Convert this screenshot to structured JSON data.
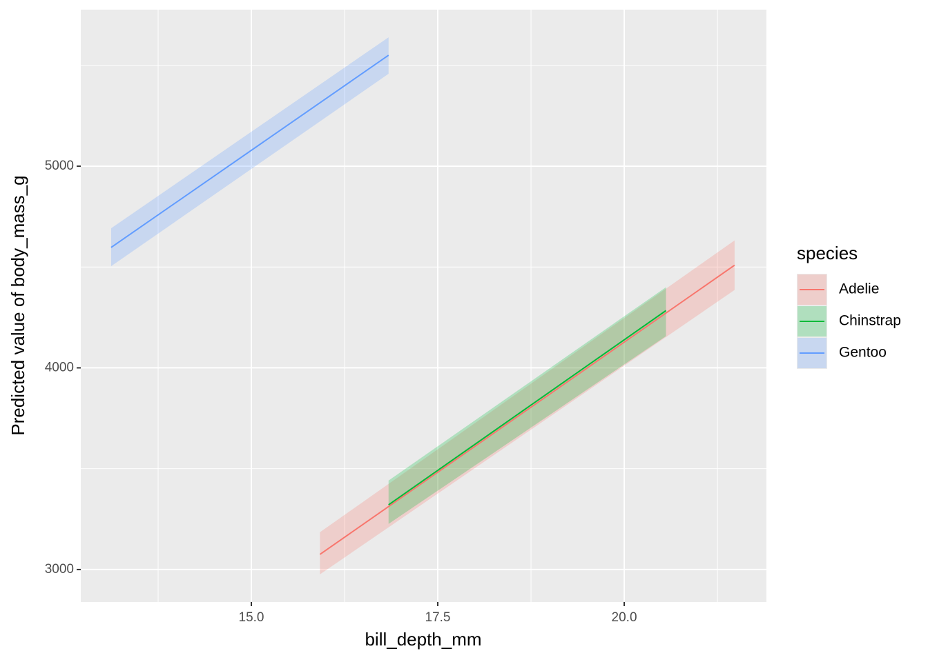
{
  "chart_data": {
    "type": "line",
    "x_label": "bill_depth_mm",
    "y_label": "Predicted value of body_mass_g",
    "legend_title": "species",
    "xlim": [
      12.713,
      21.907
    ],
    "ylim": [
      2839,
      5776
    ],
    "xticks": [
      {
        "value": 15,
        "label": "15.0"
      },
      17.5,
      {
        "value": 20,
        "label": "20.0"
      }
    ],
    "yticks": [
      3000,
      4000,
      5000
    ],
    "xminor": [
      13.75,
      16.25,
      18.75,
      21.25
    ],
    "yminor": [
      3500,
      4500,
      5500
    ],
    "grid": true,
    "legend": "right",
    "series": [
      {
        "name": "Adelie",
        "color": "#F8766D",
        "x": [
          15.92,
          21.48
        ],
        "values": [
          3075,
          4509
        ],
        "lower": [
          2976,
          4386
        ],
        "upper": [
          3185,
          4632
        ]
      },
      {
        "name": "Chinstrap",
        "color": "#00BA38",
        "x": [
          16.84,
          20.56
        ],
        "values": [
          3321,
          4284
        ],
        "lower": [
          3226,
          4157
        ],
        "upper": [
          3441,
          4400
        ]
      },
      {
        "name": "Gentoo",
        "color": "#619CFF",
        "x": [
          13.12,
          16.84
        ],
        "values": [
          4597,
          5550
        ],
        "lower": [
          4504,
          5458
        ],
        "upper": [
          4692,
          5639
        ]
      }
    ]
  }
}
